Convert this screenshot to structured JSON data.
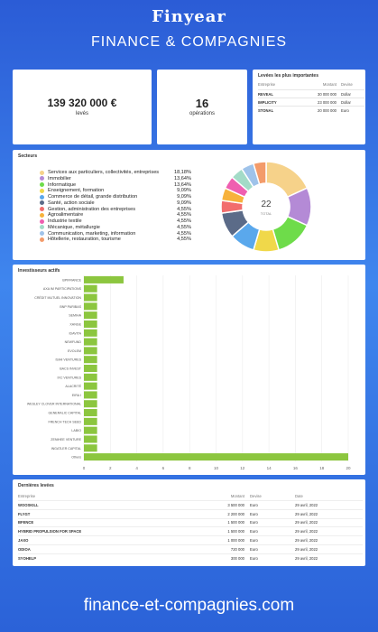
{
  "header": {
    "brand": "Finyear",
    "title": "FINANCE & COMPAGNIES"
  },
  "kpis": {
    "amount": {
      "value": "139 320 000 €",
      "label": "levés"
    },
    "operations": {
      "value": "16",
      "label": "opérations"
    }
  },
  "top_raises": {
    "title": "Levées les plus importantes",
    "headers": [
      "Entreprise",
      "Montant",
      "Devise"
    ],
    "rows": [
      [
        "REVEAL",
        "30 000 000",
        "Dollar"
      ],
      [
        "IMPLICITY",
        "23 000 000",
        "Dollar"
      ],
      [
        "STONAL",
        "20 000 000",
        "Euro"
      ]
    ]
  },
  "sectors": {
    "title": "Secteurs",
    "total_value": "22",
    "total_label": "TOTAL"
  },
  "investors": {
    "title": "Investisseurs actifs"
  },
  "latest": {
    "title": "Dernières levées",
    "headers": [
      "Entreprise",
      "Montant",
      "Devise",
      "Date"
    ],
    "rows": [
      [
        "WOOSKILL",
        "3 500 000",
        "Euro",
        "29 avril, 2022"
      ],
      [
        "FLYGT",
        "2 200 000",
        "Euro",
        "29 avril, 2022"
      ],
      [
        "BFENCE",
        "1 500 000",
        "Euro",
        "29 avril, 2022"
      ],
      [
        "HYBRID PROPULSION FOR SPACE",
        "1 500 000",
        "Euro",
        "29 avril, 2022"
      ],
      [
        "JAXO",
        "1 000 000",
        "Euro",
        "29 avril, 2022"
      ],
      [
        "ODIOA",
        "720 000",
        "Euro",
        "29 avril, 2022"
      ],
      [
        "SYOHELP",
        "300 000",
        "Euro",
        "29 avril, 2022"
      ]
    ]
  },
  "footer": {
    "url": "finance-et-compagnies.com"
  },
  "chart_data": [
    {
      "type": "pie",
      "title": "Secteurs",
      "categories": [
        "Services aux particuliers, collectivités, entreprises",
        "Immobilier",
        "Informatique",
        "Enseignement, formation",
        "Commerce de détail, grande distribution",
        "Santé, action sociale",
        "Gestion, administration des entreprises",
        "Agroalimentaire",
        "Industrie textile",
        "Mécanique, métallurgie",
        "Communication, marketing, information",
        "Hôtellerie, restauration, tourisme"
      ],
      "values": [
        18.18,
        13.64,
        13.64,
        9.09,
        9.09,
        9.09,
        4.55,
        4.55,
        4.55,
        4.55,
        4.55,
        4.55
      ],
      "value_labels": [
        "18,18%",
        "13,64%",
        "13,64%",
        "9,09%",
        "9,09%",
        "9,09%",
        "4,55%",
        "4,55%",
        "4,55%",
        "4,55%",
        "4,55%",
        "4,55%"
      ],
      "colors": [
        "#f6d28a",
        "#b48ad6",
        "#6edc4a",
        "#f0d84a",
        "#5aa8ec",
        "#5b6b88",
        "#f26d6d",
        "#f7b23c",
        "#ef5fb0",
        "#a3dbc7",
        "#9fc3ea",
        "#f39b6a"
      ],
      "legend": "left"
    },
    {
      "type": "bar",
      "orientation": "horizontal",
      "title": "Investisseurs actifs",
      "categories": [
        "BPIFRANCE",
        "AXA IM PARTICIPATIONS",
        "CRÉDIT MUTUEL INNOVATION",
        "BNP PARIBAS",
        "SEMIHA",
        "XANGE",
        "IDAVITA",
        "NEWFUND",
        "EVOLEM",
        "ISIHI VENTURES",
        "BACS INVEST",
        "IXC VENTURES",
        "ALACRITÉ",
        "EIRA I",
        "WESLEY CLOVER INTERNATIONAL",
        "GENERALIC CAPITAL",
        "FRENCH TECH SEED",
        "LABIO",
        "ZENIHEE VENTURE",
        "INGATLER CAPITAL",
        "Others"
      ],
      "values": [
        3,
        1,
        1,
        1,
        1,
        1,
        1,
        1,
        1,
        1,
        1,
        1,
        1,
        1,
        1,
        1,
        1,
        1,
        1,
        1,
        20
      ],
      "xlim": [
        0,
        20
      ],
      "xticks": [
        0,
        2,
        4,
        6,
        8,
        10,
        12,
        14,
        16,
        18,
        20
      ],
      "color": "#8cc63f",
      "grid": true
    }
  ]
}
